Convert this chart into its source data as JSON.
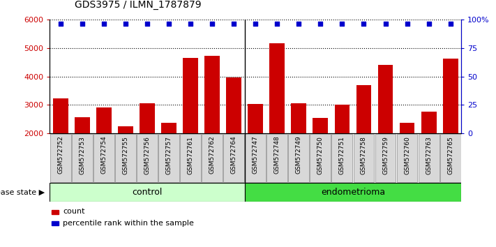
{
  "title": "GDS3975 / ILMN_1787879",
  "samples": [
    "GSM572752",
    "GSM572753",
    "GSM572754",
    "GSM572755",
    "GSM572756",
    "GSM572757",
    "GSM572761",
    "GSM572762",
    "GSM572764",
    "GSM572747",
    "GSM572748",
    "GSM572749",
    "GSM572750",
    "GSM572751",
    "GSM572758",
    "GSM572759",
    "GSM572760",
    "GSM572763",
    "GSM572765"
  ],
  "counts": [
    3230,
    2580,
    2920,
    2240,
    3050,
    2380,
    4650,
    4720,
    3970,
    3030,
    5180,
    3050,
    2550,
    3020,
    3700,
    4420,
    2380,
    2760,
    4620
  ],
  "percentile_values": [
    5870,
    5870,
    5870,
    5870,
    5870,
    5870,
    5870,
    5870,
    5870,
    5870,
    5870,
    5870,
    5870,
    5870,
    5870,
    5870,
    5870,
    5870,
    5870
  ],
  "control_count": 9,
  "endometrioma_count": 10,
  "bar_color": "#cc0000",
  "dot_color": "#0000cc",
  "control_label": "control",
  "endometrioma_label": "endometrioma",
  "disease_state_label": "disease state",
  "legend_count_label": "count",
  "legend_pct_label": "percentile rank within the sample",
  "ylim_left": [
    2000,
    6000
  ],
  "yticks_left": [
    2000,
    3000,
    4000,
    5000,
    6000
  ],
  "right_tick_labels": [
    "0",
    "25",
    "50",
    "75",
    "100%"
  ],
  "label_bg": "#d8d8d8",
  "control_bg": "#ccffcc",
  "endometrioma_bg": "#44dd44",
  "plot_bg": "#ffffff",
  "sep_color": "#000000"
}
